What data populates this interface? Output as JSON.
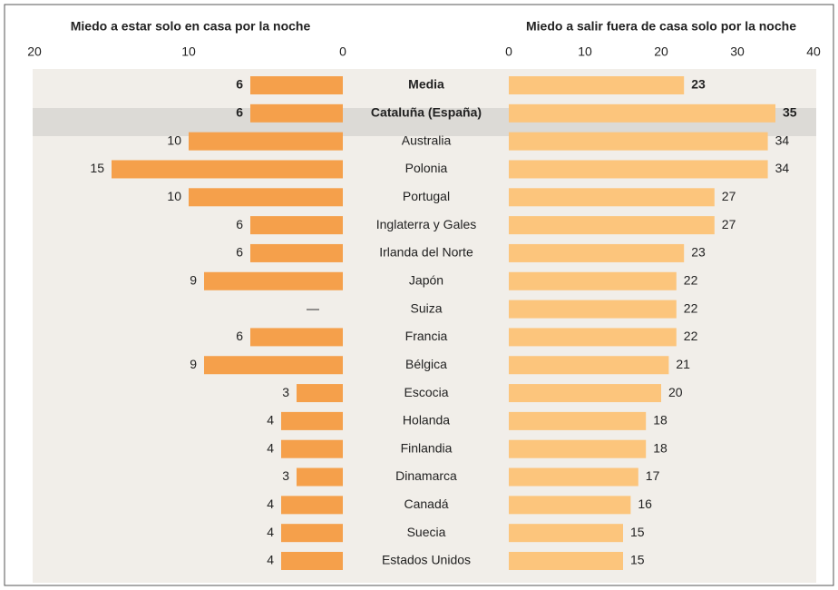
{
  "chart_data": [
    {
      "type": "bar",
      "orientation": "horizontal",
      "title": "Miedo a estar solo en casa por la noche",
      "categories": [
        "Media",
        "Cataluña (España)",
        "Australia",
        "Polonia",
        "Portugal",
        "Inglaterra y Gales",
        "Irlanda del Norte",
        "Japón",
        "Suiza",
        "Francia",
        "Bélgica",
        "Escocia",
        "Holanda",
        "Finlandia",
        "Dinamarca",
        "Canadá",
        "Suecia",
        "Estados Unidos"
      ],
      "values": [
        6,
        6,
        10,
        15,
        10,
        6,
        6,
        9,
        null,
        6,
        9,
        3,
        4,
        4,
        3,
        4,
        4,
        4
      ],
      "value_labels": [
        "6",
        "6",
        "10",
        "15",
        "10",
        "6",
        "6",
        "9",
        "—",
        "6",
        "9",
        "3",
        "4",
        "4",
        "3",
        "4",
        "4",
        "4"
      ],
      "color": "#f5a04b",
      "xlim": [
        20,
        0
      ],
      "xticks": [
        20,
        10,
        0
      ]
    },
    {
      "type": "bar",
      "orientation": "horizontal",
      "title": "Miedo a salir fuera de casa solo por la noche",
      "values": [
        23,
        35,
        34,
        34,
        27,
        27,
        23,
        22,
        22,
        22,
        21,
        20,
        18,
        18,
        17,
        16,
        15,
        15
      ],
      "color": "#fcc57c",
      "xlim": [
        0,
        40
      ],
      "xticks": [
        0,
        10,
        20,
        30,
        40
      ]
    }
  ]
}
